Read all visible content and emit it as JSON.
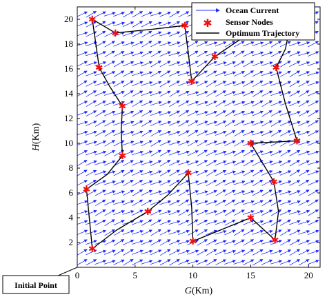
{
  "chart_data": {
    "type": "scatter",
    "xlabel": {
      "italic": "G",
      "rest": "(Km)"
    },
    "ylabel": {
      "italic": "H",
      "rest": "(Km)"
    },
    "xlim": [
      0,
      21
    ],
    "ylim": [
      0,
      21
    ],
    "xticks": [
      0,
      5,
      10,
      15,
      20
    ],
    "yticks": [
      2,
      4,
      6,
      8,
      10,
      12,
      14,
      16,
      18,
      20
    ],
    "legend": {
      "position": "top-right",
      "entries": [
        "Ocean Current",
        "Sensor Nodes",
        "Optimum Trajectory"
      ]
    },
    "annotation": {
      "text": "Initial Point",
      "points_to": [
        0,
        0
      ]
    },
    "sensor_nodes": {
      "x": [
        1.3,
        0.8,
        3.9,
        3.9,
        1.9,
        1.3,
        3.3,
        9.3,
        9.9,
        11.9,
        18.3,
        17.2,
        19.0,
        15.0,
        17.0,
        17.1,
        15.0,
        10.0,
        9.6,
        6.1
      ],
      "y": [
        1.5,
        6.3,
        9.0,
        13.0,
        16.1,
        20.0,
        18.9,
        19.5,
        15.0,
        17.0,
        19.0,
        16.1,
        10.2,
        10.0,
        6.9,
        2.2,
        4.0,
        2.1,
        7.6,
        4.5
      ]
    },
    "trajectory": {
      "x": [
        1.3,
        0.8,
        2.6,
        3.9,
        3.8,
        3.9,
        2.8,
        1.9,
        1.3,
        3.3,
        6.5,
        9.3,
        9.6,
        9.9,
        11.0,
        11.9,
        14.6,
        18.3,
        18.0,
        17.2,
        18.0,
        19.0,
        15.0,
        17.0,
        17.4,
        17.1,
        15.0,
        10.0,
        9.9,
        9.6,
        7.8,
        6.1,
        3.4,
        1.3
      ],
      "y": [
        1.5,
        6.3,
        7.5,
        9.0,
        11.0,
        13.0,
        14.6,
        16.1,
        20.0,
        18.9,
        19.2,
        19.5,
        17.3,
        15.0,
        16.1,
        17.0,
        18.7,
        19.0,
        17.6,
        16.1,
        13.2,
        10.2,
        10.0,
        6.9,
        4.5,
        2.2,
        4.0,
        2.1,
        4.8,
        7.6,
        5.8,
        4.5,
        3.0,
        1.5
      ]
    },
    "ocean_current": {
      "grid_spacing": 0.8,
      "direction_deg": 24,
      "color": "#1f2cff"
    },
    "colors": {
      "current": "#1f2cff",
      "nodes": "#ee1111",
      "trajectory": "#000000"
    }
  }
}
